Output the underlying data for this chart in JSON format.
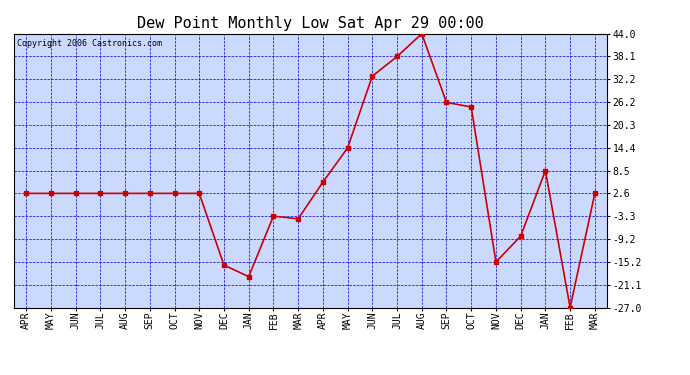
{
  "title": "Dew Point Monthly Low Sat Apr 29 00:00",
  "copyright": "Copyright 2006 Castronics.com",
  "x_labels": [
    "APR",
    "MAY",
    "JUN",
    "JUL",
    "AUG",
    "SEP",
    "OCT",
    "NOV",
    "DEC",
    "JAN",
    "FEB",
    "MAR",
    "APR",
    "MAY",
    "JUN",
    "JUL",
    "AUG",
    "SEP",
    "OCT",
    "NOV",
    "DEC",
    "JAN",
    "FEB",
    "MAR"
  ],
  "y_values": [
    2.6,
    2.6,
    2.6,
    2.6,
    2.6,
    2.6,
    2.6,
    2.6,
    -16.0,
    -19.0,
    -3.3,
    -4.0,
    5.5,
    14.4,
    33.0,
    38.1,
    44.0,
    26.2,
    25.0,
    -15.2,
    -8.5,
    8.5,
    -27.0,
    2.6
  ],
  "y_ticks": [
    44.0,
    38.1,
    32.2,
    26.2,
    20.3,
    14.4,
    8.5,
    2.6,
    -3.3,
    -9.2,
    -15.2,
    -21.1,
    -27.0
  ],
  "y_min": -27.0,
  "y_max": 44.0,
  "line_color": "#cc0000",
  "marker_color": "#cc0000",
  "bg_color": "#ccd9ff",
  "grid_color": "#0000cc",
  "outer_bg": "#ffffff",
  "title_fontsize": 11,
  "copyright_fontsize": 6,
  "tick_fontsize": 7,
  "marker_size": 2.5,
  "line_width": 1.2
}
